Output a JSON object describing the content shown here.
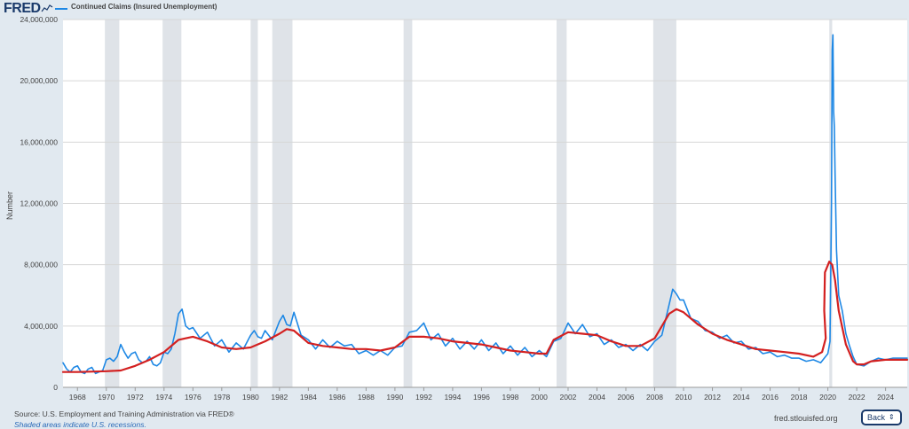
{
  "header": {
    "logo_text": "FRED",
    "logo_mark": "sparkline-icon"
  },
  "chart_data": {
    "type": "line",
    "title": "",
    "series": [
      {
        "name": "Continued Claims (Insured Unemployment)",
        "color": "#1e88e5",
        "x": [
          1967.0,
          1967.25,
          1967.5,
          1967.75,
          1968.0,
          1968.25,
          1968.5,
          1968.75,
          1969.0,
          1969.25,
          1969.5,
          1969.75,
          1970.0,
          1970.25,
          1970.5,
          1970.75,
          1971.0,
          1971.25,
          1971.5,
          1971.75,
          1972.0,
          1972.25,
          1972.5,
          1972.75,
          1973.0,
          1973.25,
          1973.5,
          1973.75,
          1974.0,
          1974.25,
          1974.5,
          1974.75,
          1975.0,
          1975.25,
          1975.5,
          1975.75,
          1976.0,
          1976.5,
          1977.0,
          1977.5,
          1978.0,
          1978.5,
          1979.0,
          1979.5,
          1980.0,
          1980.25,
          1980.5,
          1980.75,
          1981.0,
          1981.5,
          1982.0,
          1982.25,
          1982.5,
          1982.75,
          1983.0,
          1983.5,
          1984.0,
          1984.5,
          1985.0,
          1985.5,
          1986.0,
          1986.5,
          1987.0,
          1987.5,
          1988.0,
          1988.5,
          1989.0,
          1989.5,
          1990.0,
          1990.5,
          1991.0,
          1991.5,
          1992.0,
          1992.5,
          1993.0,
          1993.5,
          1994.0,
          1994.5,
          1995.0,
          1995.5,
          1996.0,
          1996.5,
          1997.0,
          1997.5,
          1998.0,
          1998.5,
          1999.0,
          1999.5,
          2000.0,
          2000.5,
          2001.0,
          2001.5,
          2002.0,
          2002.5,
          2003.0,
          2003.5,
          2004.0,
          2004.5,
          2005.0,
          2005.5,
          2006.0,
          2006.5,
          2007.0,
          2007.5,
          2008.0,
          2008.5,
          2009.0,
          2009.25,
          2009.5,
          2009.75,
          2010.0,
          2010.5,
          2011.0,
          2011.5,
          2012.0,
          2012.5,
          2013.0,
          2013.5,
          2014.0,
          2014.5,
          2015.0,
          2015.5,
          2016.0,
          2016.5,
          2017.0,
          2017.5,
          2018.0,
          2018.5,
          2019.0,
          2019.5,
          2020.0,
          2020.15,
          2020.25,
          2020.3,
          2020.35,
          2020.4,
          2020.45,
          2020.5,
          2020.6,
          2020.75,
          2021.0,
          2021.25,
          2021.5,
          2021.75,
          2022.0,
          2022.5,
          2023.0,
          2023.5,
          2024.0,
          2024.5,
          2025.0,
          2025.5
        ],
        "values": [
          1600000,
          1200000,
          1000000,
          1300000,
          1400000,
          1000000,
          900000,
          1200000,
          1300000,
          900000,
          1000000,
          1100000,
          1800000,
          1900000,
          1700000,
          2000000,
          2800000,
          2300000,
          1900000,
          2200000,
          2300000,
          1800000,
          1600000,
          1700000,
          2000000,
          1500000,
          1400000,
          1600000,
          2300000,
          2200000,
          2500000,
          3500000,
          4800000,
          5100000,
          4000000,
          3800000,
          3900000,
          3200000,
          3600000,
          2700000,
          3100000,
          2300000,
          2900000,
          2500000,
          3400000,
          3700000,
          3300000,
          3200000,
          3700000,
          3100000,
          4300000,
          4700000,
          4100000,
          4000000,
          4900000,
          3400000,
          3100000,
          2500000,
          3100000,
          2600000,
          3000000,
          2700000,
          2800000,
          2200000,
          2400000,
          2100000,
          2400000,
          2100000,
          2600000,
          2700000,
          3600000,
          3700000,
          4200000,
          3100000,
          3500000,
          2700000,
          3200000,
          2500000,
          3000000,
          2500000,
          3100000,
          2400000,
          2900000,
          2200000,
          2700000,
          2100000,
          2600000,
          2000000,
          2400000,
          2000000,
          3000000,
          3200000,
          4200000,
          3500000,
          4100000,
          3300000,
          3500000,
          2800000,
          3100000,
          2600000,
          2800000,
          2400000,
          2800000,
          2400000,
          3000000,
          3400000,
          5400000,
          6400000,
          6100000,
          5700000,
          5700000,
          4500000,
          4300000,
          3700000,
          3600000,
          3200000,
          3400000,
          2900000,
          3000000,
          2500000,
          2600000,
          2200000,
          2300000,
          2000000,
          2100000,
          1900000,
          1900000,
          1700000,
          1800000,
          1600000,
          2200000,
          3000000,
          12000000,
          22000000,
          23000000,
          18000000,
          17000000,
          14000000,
          9000000,
          6000000,
          5000000,
          3500000,
          2700000,
          2000000,
          1500000,
          1400000,
          1700000,
          1900000,
          1800000,
          1900000,
          1900000,
          1900000
        ]
      },
      {
        "name": "",
        "color": "#d32020",
        "x": [
          1967.0,
          1968.0,
          1970.0,
          1971.0,
          1972.0,
          1973.0,
          1974.0,
          1975.0,
          1976.0,
          1977.0,
          1978.0,
          1979.0,
          1980.0,
          1981.0,
          1982.0,
          1982.5,
          1983.0,
          1984.0,
          1985.0,
          1986.0,
          1987.0,
          1988.0,
          1989.0,
          1990.0,
          1991.0,
          1992.0,
          1993.0,
          1994.0,
          1995.0,
          1996.0,
          1997.0,
          1998.0,
          1999.0,
          2000.0,
          2000.5,
          2001.0,
          2002.0,
          2003.0,
          2004.0,
          2005.0,
          2006.0,
          2007.0,
          2008.0,
          2009.0,
          2009.5,
          2010.0,
          2011.0,
          2012.0,
          2013.0,
          2014.0,
          2015.0,
          2016.0,
          2017.0,
          2018.0,
          2019.0,
          2019.6,
          2019.85,
          2019.75,
          2019.8,
          2020.1,
          2020.3,
          2020.5,
          2020.75,
          2021.25,
          2021.75,
          2022.0,
          2022.5,
          2023.0,
          2024.0,
          2025.0,
          2025.5
        ],
        "values": [
          1000000,
          1000000,
          1050000,
          1100000,
          1400000,
          1800000,
          2300000,
          3100000,
          3300000,
          3000000,
          2600000,
          2500000,
          2600000,
          3000000,
          3500000,
          3800000,
          3700000,
          2900000,
          2700000,
          2600000,
          2500000,
          2500000,
          2400000,
          2600000,
          3300000,
          3300000,
          3200000,
          3000000,
          2900000,
          2800000,
          2600000,
          2400000,
          2300000,
          2200000,
          2200000,
          3100000,
          3600000,
          3500000,
          3400000,
          3000000,
          2700000,
          2700000,
          3200000,
          4800000,
          5100000,
          4900000,
          4100000,
          3500000,
          3100000,
          2800000,
          2500000,
          2400000,
          2300000,
          2200000,
          2000000,
          2300000,
          3200000,
          5000000,
          7500000,
          8200000,
          8000000,
          7000000,
          5000000,
          2800000,
          1700000,
          1500000,
          1500000,
          1700000,
          1800000,
          1800000,
          1800000
        ]
      }
    ],
    "recessions": [
      [
        1969.9,
        1970.9
      ],
      [
        1973.9,
        1975.2
      ],
      [
        1980.0,
        1980.5
      ],
      [
        1981.5,
        1982.9
      ],
      [
        1990.6,
        1991.2
      ],
      [
        2001.2,
        2001.9
      ],
      [
        2007.9,
        2009.5
      ],
      [
        2020.1,
        2020.3
      ]
    ],
    "xlim": [
      1967.0,
      2025.5
    ],
    "ylim": [
      0,
      24000000
    ],
    "xticks": [
      "1968",
      "1970",
      "1972",
      "1974",
      "1976",
      "1978",
      "1980",
      "1982",
      "1984",
      "1986",
      "1988",
      "1990",
      "1992",
      "1994",
      "1996",
      "1998",
      "2000",
      "2002",
      "2004",
      "2006",
      "2008",
      "2010",
      "2012",
      "2014",
      "2016",
      "2018",
      "2020",
      "2022",
      "2024"
    ],
    "yticks": [
      "0",
      "4,000,000",
      "8,000,000",
      "12,000,000",
      "16,000,000",
      "20,000,000",
      "24,000,000"
    ],
    "ytick_values": [
      0,
      4000000,
      8000000,
      12000000,
      16000000,
      20000000,
      24000000
    ],
    "xtick_values": [
      1968,
      1970,
      1972,
      1974,
      1976,
      1978,
      1980,
      1982,
      1984,
      1986,
      1988,
      1990,
      1992,
      1994,
      1996,
      1998,
      2000,
      2002,
      2004,
      2006,
      2008,
      2010,
      2012,
      2014,
      2016,
      2018,
      2020,
      2022,
      2024
    ],
    "ylabel": "Number",
    "xlabel": "",
    "grid": true,
    "legend_position": "top-left"
  },
  "footer": {
    "source": "Source: U.S. Employment and Training Administration via FRED®",
    "note": "Shaded areas indicate U.S. recessions.",
    "site": "fred.stlouisfed.org",
    "back_label": "Back",
    "back_icon": "⇕"
  }
}
